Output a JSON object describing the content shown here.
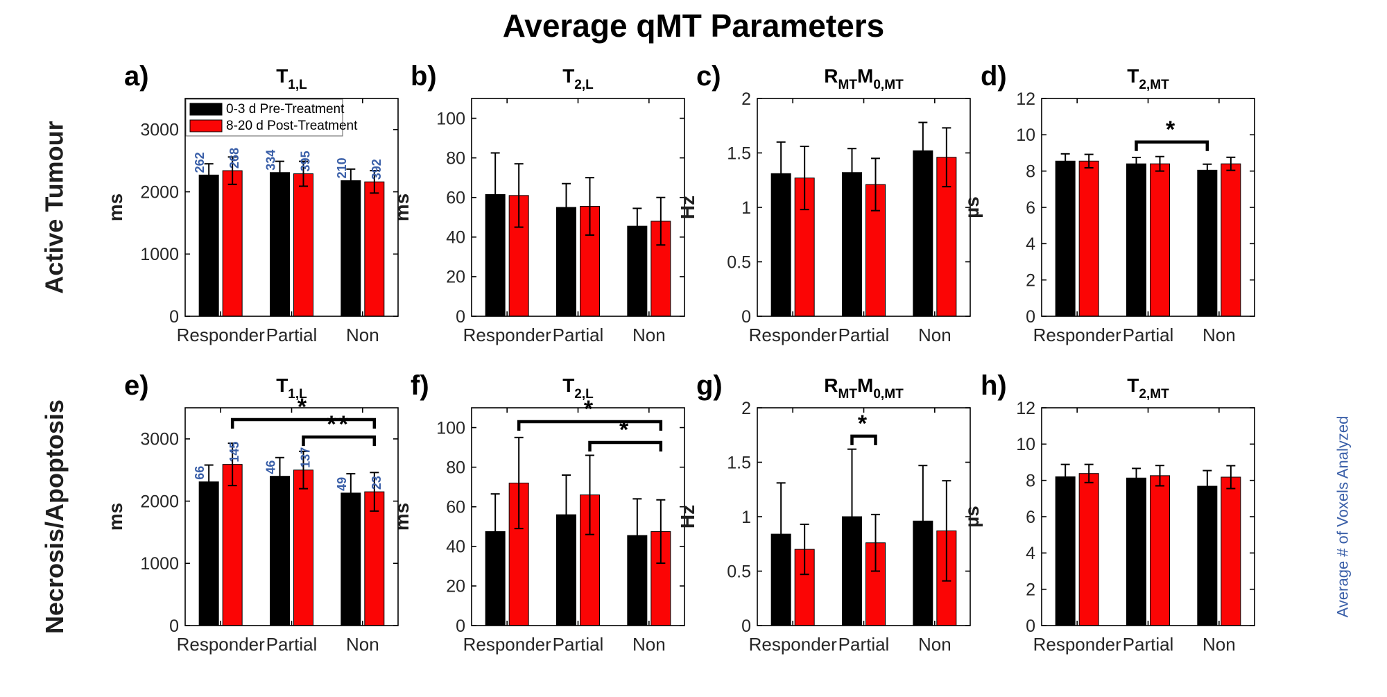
{
  "figure": {
    "title": "Average qMT Parameters",
    "background": "#ffffff"
  },
  "rows": [
    {
      "label": "Active Tumour"
    },
    {
      "label": "Necrosis/Apoptosis"
    }
  ],
  "right_label": {
    "text": "Average # of Voxels Analyzed",
    "color": "#3a5fa8"
  },
  "legend": {
    "items": [
      {
        "label": "0-3 d Pre-Treatment",
        "color": "#000000"
      },
      {
        "label": "8-20 d Post-Treatment",
        "color": "#fb0505"
      }
    ]
  },
  "colors": {
    "pre_bar": "#000000",
    "post_bar": "#fb0505",
    "count_text": "#3a5fa8",
    "tick_text": "#262626",
    "axis": "#000000"
  },
  "chart_data": [
    {
      "id": "a",
      "panel_letter": "a)",
      "row": 0,
      "type": "bar",
      "title_segments": [
        {
          "text": "T",
          "sub": false
        },
        {
          "text": "1,L",
          "sub": true
        }
      ],
      "ylabel": "ms",
      "ylim": [
        0,
        3500
      ],
      "yticks": [
        0,
        1000,
        2000,
        3000
      ],
      "categories": [
        "Responder",
        "Partial",
        "Non"
      ],
      "series": [
        {
          "name": "0-3 d Pre-Treatment",
          "color": "#000000",
          "values": [
            2270,
            2310,
            2180
          ],
          "errors": [
            180,
            180,
            185
          ],
          "counts": [
            262,
            334,
            210
          ]
        },
        {
          "name": "8-20 d Post-Treatment",
          "color": "#fb0505",
          "values": [
            2340,
            2290,
            2160
          ],
          "errors": [
            220,
            200,
            180
          ],
          "counts": [
            268,
            395,
            392
          ]
        }
      ],
      "show_legend": true,
      "brackets": []
    },
    {
      "id": "b",
      "panel_letter": "b)",
      "row": 0,
      "type": "bar",
      "title_segments": [
        {
          "text": "T",
          "sub": false
        },
        {
          "text": "2,L",
          "sub": true
        }
      ],
      "ylabel": "ms",
      "ylim": [
        0,
        110
      ],
      "yticks": [
        0,
        20,
        40,
        60,
        80,
        100
      ],
      "categories": [
        "Responder",
        "Partial",
        "Non"
      ],
      "series": [
        {
          "name": "0-3 d Pre-Treatment",
          "color": "#000000",
          "values": [
            61.5,
            55,
            45.5
          ],
          "errors": [
            21,
            12,
            9
          ]
        },
        {
          "name": "8-20 d Post-Treatment",
          "color": "#fb0505",
          "values": [
            61,
            55.5,
            48
          ],
          "errors": [
            16,
            14.5,
            12
          ]
        }
      ],
      "show_legend": false,
      "brackets": []
    },
    {
      "id": "c",
      "panel_letter": "c)",
      "row": 0,
      "type": "bar",
      "title_segments": [
        {
          "text": "R",
          "sub": false
        },
        {
          "text": "MT",
          "sub": true
        },
        {
          "text": "M",
          "sub": false
        },
        {
          "text": "0,MT",
          "sub": true
        }
      ],
      "ylabel": "Hz",
      "ylim": [
        0,
        2
      ],
      "yticks": [
        0,
        0.5,
        1,
        1.5,
        2
      ],
      "categories": [
        "Responder",
        "Partial",
        "Non"
      ],
      "series": [
        {
          "name": "0-3 d Pre-Treatment",
          "color": "#000000",
          "values": [
            1.31,
            1.32,
            1.52
          ],
          "errors": [
            0.29,
            0.22,
            0.26
          ]
        },
        {
          "name": "8-20 d Post-Treatment",
          "color": "#fb0505",
          "values": [
            1.27,
            1.21,
            1.46
          ],
          "errors": [
            0.29,
            0.24,
            0.27
          ]
        }
      ],
      "show_legend": false,
      "brackets": []
    },
    {
      "id": "d",
      "panel_letter": "d)",
      "row": 0,
      "type": "bar",
      "title_segments": [
        {
          "text": "T",
          "sub": false
        },
        {
          "text": "2,MT",
          "sub": true
        }
      ],
      "ylabel": "µs",
      "ylim": [
        0,
        12
      ],
      "yticks": [
        0,
        2,
        4,
        6,
        8,
        10,
        12
      ],
      "categories": [
        "Responder",
        "Partial",
        "Non"
      ],
      "series": [
        {
          "name": "0-3 d Pre-Treatment",
          "color": "#000000",
          "values": [
            8.55,
            8.4,
            8.05
          ],
          "errors": [
            0.4,
            0.35,
            0.33
          ]
        },
        {
          "name": "8-20 d Post-Treatment",
          "color": "#fb0505",
          "values": [
            8.55,
            8.4,
            8.4
          ],
          "errors": [
            0.37,
            0.4,
            0.36
          ]
        }
      ],
      "show_legend": false,
      "brackets": [
        {
          "cat1": 1,
          "series1": 0,
          "cat2": 2,
          "series2": 0,
          "y": 9.6,
          "label": "*"
        }
      ]
    },
    {
      "id": "e",
      "panel_letter": "e)",
      "row": 1,
      "type": "bar",
      "title_segments": [
        {
          "text": "T",
          "sub": false
        },
        {
          "text": "1,L",
          "sub": true
        }
      ],
      "ylabel": "ms",
      "ylim": [
        0,
        3500
      ],
      "yticks": [
        0,
        1000,
        2000,
        3000
      ],
      "categories": [
        "Responder",
        "Partial",
        "Non"
      ],
      "series": [
        {
          "name": "0-3 d Pre-Treatment",
          "color": "#000000",
          "values": [
            2310,
            2400,
            2130
          ],
          "errors": [
            270,
            300,
            310
          ],
          "counts": [
            66,
            46,
            49
          ]
        },
        {
          "name": "8-20 d Post-Treatment",
          "color": "#fb0505",
          "values": [
            2590,
            2500,
            2150
          ],
          "errors": [
            340,
            300,
            310
          ],
          "counts": [
            145,
            137,
            23
          ]
        }
      ],
      "show_legend": false,
      "brackets": [
        {
          "cat1": 0,
          "series1": 1,
          "cat2": 2,
          "series2": 1,
          "y": 3310,
          "label": "*"
        },
        {
          "cat1": 1,
          "series1": 1,
          "cat2": 2,
          "series2": 1,
          "y": 3030,
          "label": "**"
        }
      ]
    },
    {
      "id": "f",
      "panel_letter": "f)",
      "row": 1,
      "type": "bar",
      "title_segments": [
        {
          "text": "T",
          "sub": false
        },
        {
          "text": "2,L",
          "sub": true
        }
      ],
      "ylabel": "ms",
      "ylim": [
        0,
        110
      ],
      "yticks": [
        0,
        20,
        40,
        60,
        80,
        100
      ],
      "categories": [
        "Responder",
        "Partial",
        "Non"
      ],
      "series": [
        {
          "name": "0-3 d Pre-Treatment",
          "color": "#000000",
          "values": [
            47.5,
            56,
            45.5
          ],
          "errors": [
            19,
            20,
            18.5
          ]
        },
        {
          "name": "8-20 d Post-Treatment",
          "color": "#fb0505",
          "values": [
            72,
            66,
            47.5
          ],
          "errors": [
            23,
            20,
            16
          ]
        }
      ],
      "show_legend": false,
      "brackets": [
        {
          "cat1": 0,
          "series1": 1,
          "cat2": 2,
          "series2": 1,
          "y": 103,
          "label": "*"
        },
        {
          "cat1": 1,
          "series1": 1,
          "cat2": 2,
          "series2": 1,
          "y": 92.5,
          "label": "*"
        }
      ]
    },
    {
      "id": "g",
      "panel_letter": "g)",
      "row": 1,
      "type": "bar",
      "title_segments": [
        {
          "text": "R",
          "sub": false
        },
        {
          "text": "MT",
          "sub": true
        },
        {
          "text": "M",
          "sub": false
        },
        {
          "text": "0,MT",
          "sub": true
        }
      ],
      "ylabel": "Hz",
      "ylim": [
        0,
        2
      ],
      "yticks": [
        0,
        0.5,
        1,
        1.5,
        2
      ],
      "categories": [
        "Responder",
        "Partial",
        "Non"
      ],
      "series": [
        {
          "name": "0-3 d Pre-Treatment",
          "color": "#000000",
          "values": [
            0.84,
            1.0,
            0.96
          ],
          "errors": [
            0.47,
            0.62,
            0.51
          ]
        },
        {
          "name": "8-20 d Post-Treatment",
          "color": "#fb0505",
          "values": [
            0.7,
            0.76,
            0.87
          ],
          "errors": [
            0.23,
            0.26,
            0.46
          ]
        }
      ],
      "show_legend": false,
      "brackets": [
        {
          "cat1": 1,
          "series1": 0,
          "cat2": 1,
          "series2": 1,
          "y": 1.74,
          "label": "*"
        }
      ]
    },
    {
      "id": "h",
      "panel_letter": "h)",
      "row": 1,
      "type": "bar",
      "title_segments": [
        {
          "text": "T",
          "sub": false
        },
        {
          "text": "2,MT",
          "sub": true
        }
      ],
      "ylabel": "µs",
      "ylim": [
        0,
        12
      ],
      "yticks": [
        0,
        2,
        4,
        6,
        8,
        10,
        12
      ],
      "categories": [
        "Responder",
        "Partial",
        "Non"
      ],
      "series": [
        {
          "name": "0-3 d Pre-Treatment",
          "color": "#000000",
          "values": [
            8.2,
            8.13,
            7.68
          ],
          "errors": [
            0.68,
            0.53,
            0.86
          ]
        },
        {
          "name": "8-20 d Post-Treatment",
          "color": "#fb0505",
          "values": [
            8.38,
            8.26,
            8.18
          ],
          "errors": [
            0.5,
            0.56,
            0.63
          ]
        }
      ],
      "show_legend": false,
      "brackets": []
    }
  ]
}
